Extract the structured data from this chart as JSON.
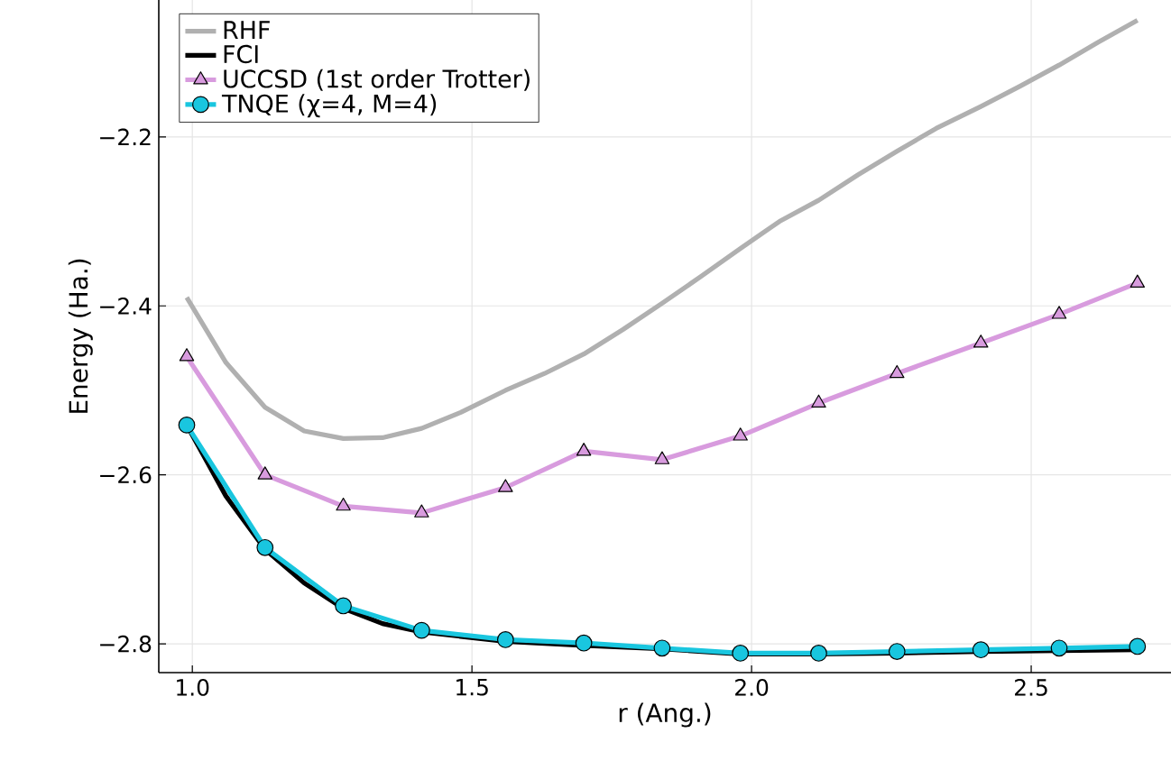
{
  "chart_data": {
    "type": "line",
    "xlabel": "r (Ang.)",
    "ylabel": "Energy (Ha.)",
    "xlim": [
      0.94,
      2.75
    ],
    "ylim": [
      -2.834,
      -2.038
    ],
    "xticks": [
      {
        "value": 1.0,
        "label": "1.0"
      },
      {
        "value": 1.5,
        "label": "1.5"
      },
      {
        "value": 2.0,
        "label": "2.0"
      },
      {
        "value": 2.5,
        "label": "2.5"
      }
    ],
    "yticks": [
      {
        "value": -2.8,
        "label": "−2.8"
      },
      {
        "value": -2.6,
        "label": "−2.6"
      },
      {
        "value": -2.4,
        "label": "−2.4"
      },
      {
        "value": -2.2,
        "label": "−2.2"
      }
    ],
    "grid": true,
    "legend": "top left",
    "series": [
      {
        "name": "RHF",
        "color": "#b0b0b0",
        "marker": "none",
        "x": [
          0.99,
          1.06,
          1.13,
          1.2,
          1.27,
          1.34,
          1.41,
          1.48,
          1.56,
          1.63,
          1.7,
          1.77,
          1.84,
          1.91,
          1.98,
          2.05,
          2.12,
          2.19,
          2.26,
          2.33,
          2.41,
          2.48,
          2.55,
          2.62,
          2.69
        ],
        "values": [
          -2.39,
          -2.467,
          -2.52,
          -2.548,
          -2.557,
          -2.556,
          -2.545,
          -2.526,
          -2.5,
          -2.48,
          -2.457,
          -2.428,
          -2.397,
          -2.365,
          -2.332,
          -2.3,
          -2.275,
          -2.245,
          -2.217,
          -2.19,
          -2.164,
          -2.14,
          -2.115,
          -2.088,
          -2.062
        ]
      },
      {
        "name": "FCI",
        "color": "#000000",
        "marker": "none",
        "x": [
          0.99,
          1.06,
          1.13,
          1.2,
          1.27,
          1.34,
          1.41,
          1.56,
          1.7,
          1.84,
          1.98,
          2.12,
          2.26,
          2.41,
          2.55,
          2.69
        ],
        "values": [
          -2.541,
          -2.625,
          -2.688,
          -2.728,
          -2.758,
          -2.776,
          -2.786,
          -2.797,
          -2.802,
          -2.806,
          -2.812,
          -2.812,
          -2.811,
          -2.809,
          -2.808,
          -2.807
        ]
      },
      {
        "name": "UCCSD (1st order Trotter)",
        "color": "#d89bde",
        "marker": "triangle",
        "x": [
          0.99,
          1.13,
          1.27,
          1.41,
          1.56,
          1.7,
          1.84,
          1.98,
          2.12,
          2.26,
          2.41,
          2.55,
          2.69
        ],
        "values": [
          -2.46,
          -2.6,
          -2.637,
          -2.645,
          -2.615,
          -2.572,
          -2.582,
          -2.554,
          -2.515,
          -2.48,
          -2.444,
          -2.41,
          -2.373
        ]
      },
      {
        "name": "TNQE (χ=4, M=4)",
        "color": "#19c6df",
        "marker": "circle",
        "x": [
          0.99,
          1.13,
          1.27,
          1.41,
          1.56,
          1.7,
          1.84,
          1.98,
          2.12,
          2.26,
          2.41,
          2.55,
          2.69
        ],
        "values": [
          -2.541,
          -2.686,
          -2.755,
          -2.784,
          -2.795,
          -2.799,
          -2.805,
          -2.811,
          -2.811,
          -2.809,
          -2.807,
          -2.805,
          -2.803
        ]
      }
    ]
  }
}
